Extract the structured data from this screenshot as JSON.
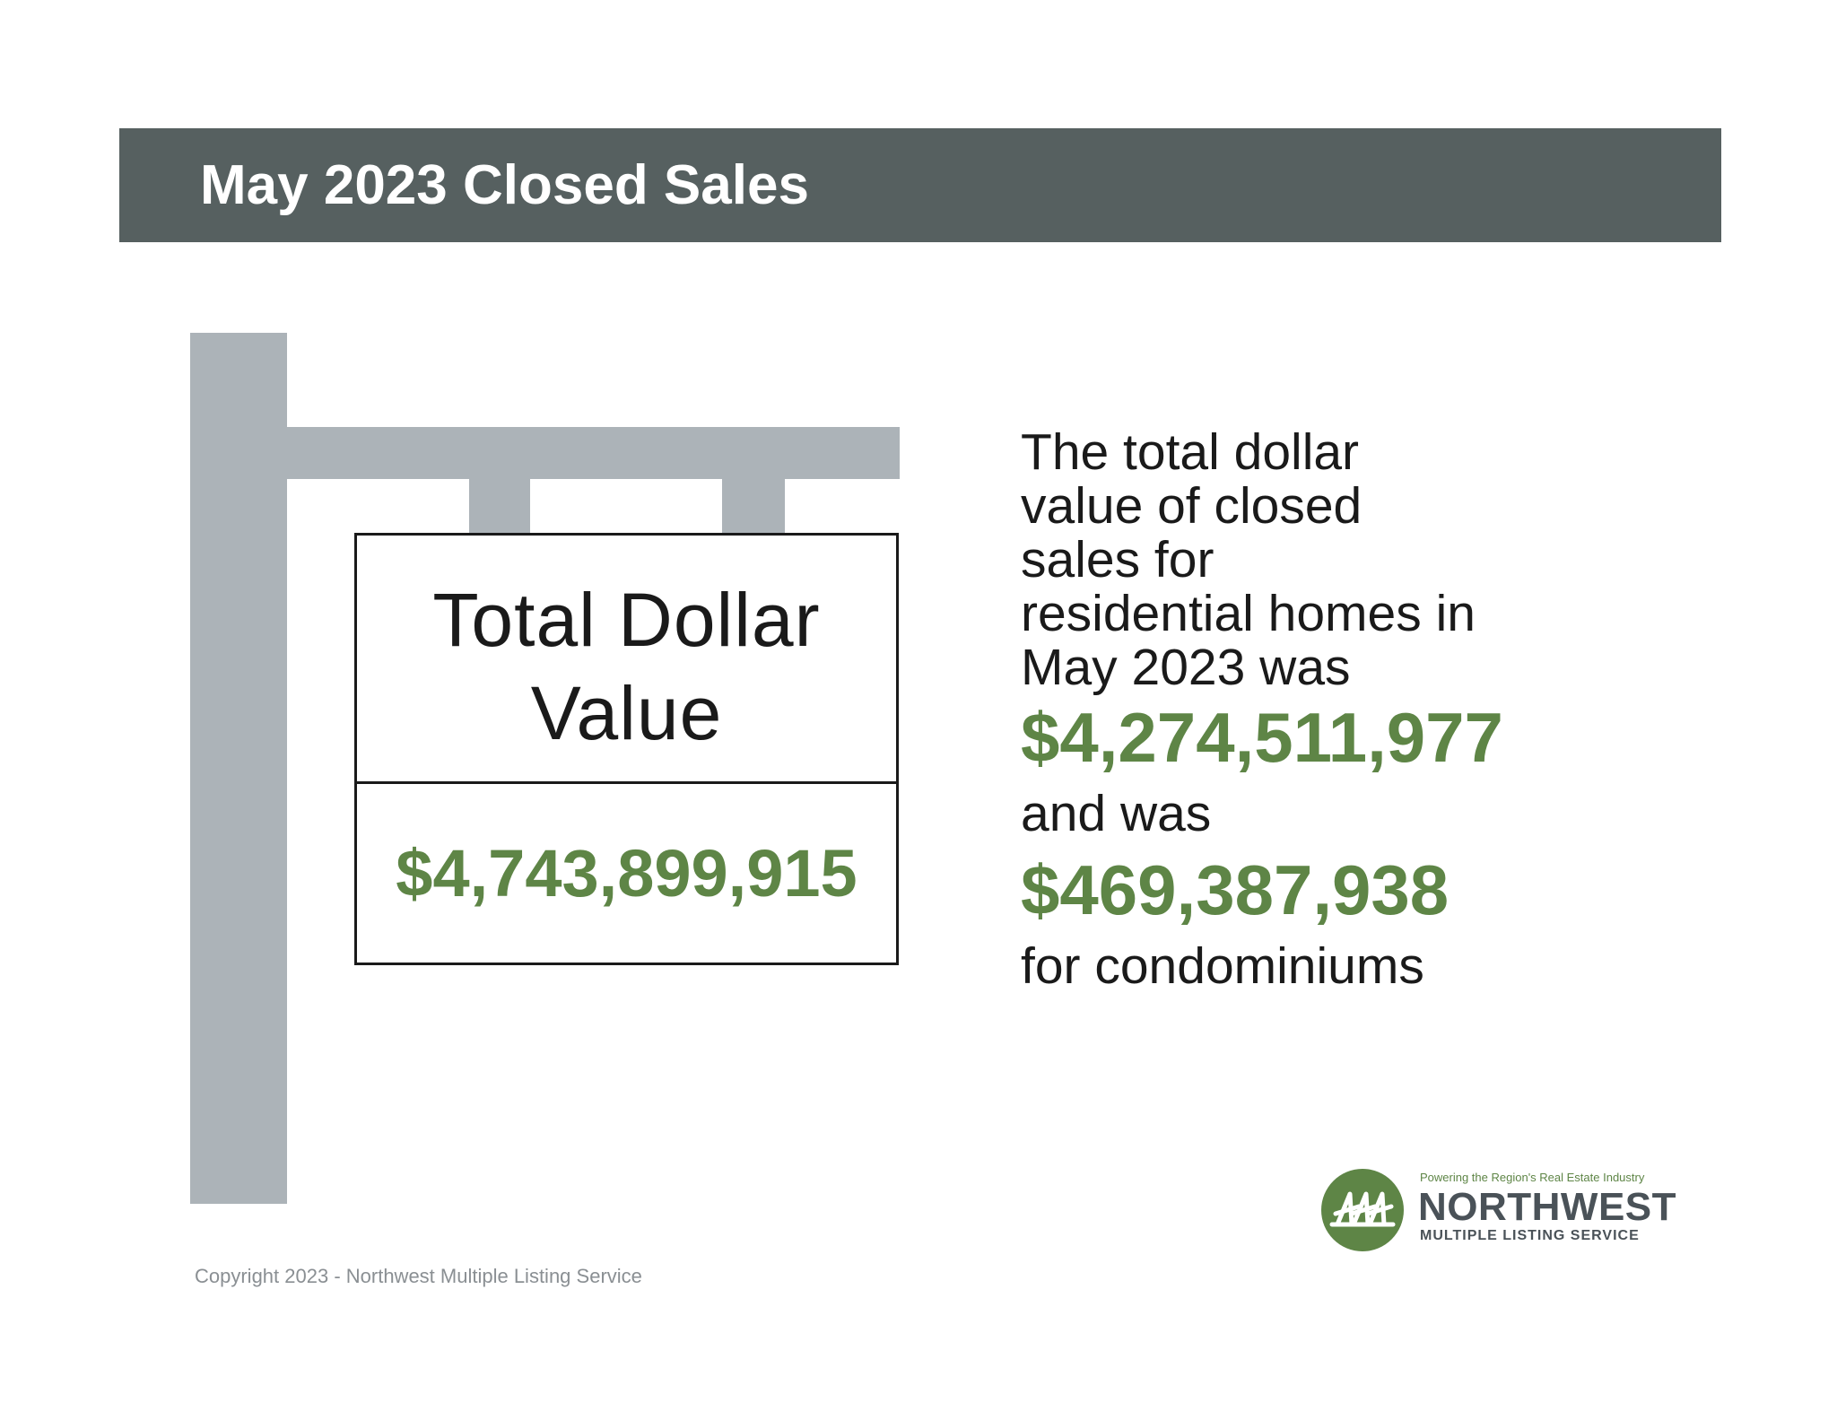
{
  "header": {
    "title": "May 2023 Closed Sales"
  },
  "sign": {
    "title_line1": "Total Dollar",
    "title_line2": "Value",
    "total_value": "$4,743,899,915"
  },
  "description": {
    "intro_lines": [
      "The total dollar",
      "value of closed",
      "sales for",
      "residential homes in",
      "May 2023 was"
    ],
    "residential_value": "$4,274,511,977",
    "connector": "and was",
    "condo_value": "$469,387,938",
    "tail": "for condominiums"
  },
  "footer": {
    "copyright": "Copyright 2023 - Northwest Multiple Listing Service"
  },
  "logo": {
    "tagline": "Powering the Region's Real Estate Industry",
    "name": "NORTHWEST",
    "sub": "MULTIPLE LISTING SERVICE",
    "icon": "tree-logo-icon"
  },
  "colors": {
    "header_bg": "#566060",
    "accent_green": "#5e8546",
    "sign_gray": "#acb3b8"
  }
}
